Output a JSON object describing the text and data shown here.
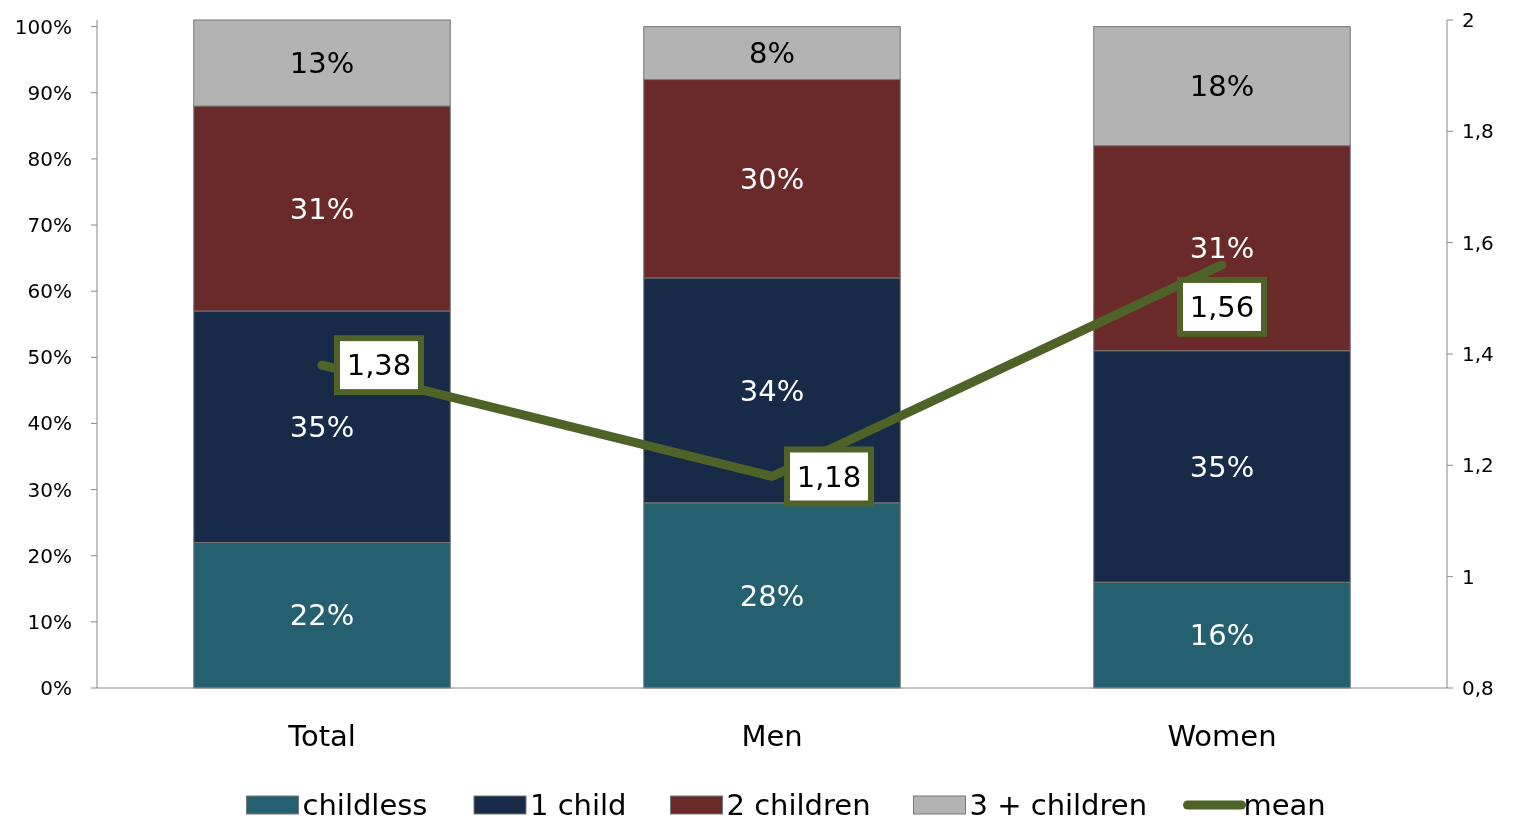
{
  "chart_data": {
    "type": "bar",
    "stacked": true,
    "categories": [
      "Total",
      "Men",
      "Women"
    ],
    "ylim": [
      0,
      101
    ],
    "yticks": [
      {
        "value": 0,
        "label": "0%"
      },
      {
        "value": 10,
        "label": "10%"
      },
      {
        "value": 20,
        "label": "20%"
      },
      {
        "value": 30,
        "label": "30%"
      },
      {
        "value": 40,
        "label": "40%"
      },
      {
        "value": 50,
        "label": "50%"
      },
      {
        "value": 60,
        "label": "60%"
      },
      {
        "value": 70,
        "label": "70%"
      },
      {
        "value": 80,
        "label": "80%"
      },
      {
        "value": 90,
        "label": "90%"
      },
      {
        "value": 100,
        "label": "100%"
      }
    ],
    "y2lim": [
      0.8,
      2
    ],
    "y2ticks": [
      {
        "value": 0.8,
        "label": "0,8"
      },
      1,
      {
        "value": 1.2,
        "label": "1,2"
      },
      {
        "value": 1.4,
        "label": "1,4"
      },
      {
        "value": 1.6,
        "label": "1,6"
      },
      {
        "value": 1.8,
        "label": "1,8"
      },
      2
    ],
    "legend": "bottom",
    "grid": false,
    "series": [
      {
        "name": "childless",
        "color": "#256070",
        "values": [
          22,
          28,
          16
        ],
        "value_labels": [
          "22%",
          "28%",
          "16%"
        ]
      },
      {
        "name": "1 child",
        "color": "#172a48",
        "values": [
          35,
          34,
          35
        ],
        "value_labels": [
          "35%",
          "34%",
          "35%"
        ]
      },
      {
        "name": "2 children",
        "color": "#6b2a2a",
        "values": [
          31,
          30,
          31
        ],
        "value_labels": [
          "31%",
          "30%",
          "31%"
        ]
      },
      {
        "name": "3 + children",
        "color": "#b3b3b3",
        "values": [
          13,
          8,
          18
        ],
        "value_labels": [
          "13%",
          "8%",
          "18%"
        ]
      },
      {
        "name": "mean",
        "type": "line",
        "axis": "y2",
        "color": "#4f6228",
        "values": [
          1.38,
          1.18,
          1.56
        ],
        "value_labels": [
          "1,38",
          "1,18",
          "1,56"
        ]
      }
    ]
  }
}
